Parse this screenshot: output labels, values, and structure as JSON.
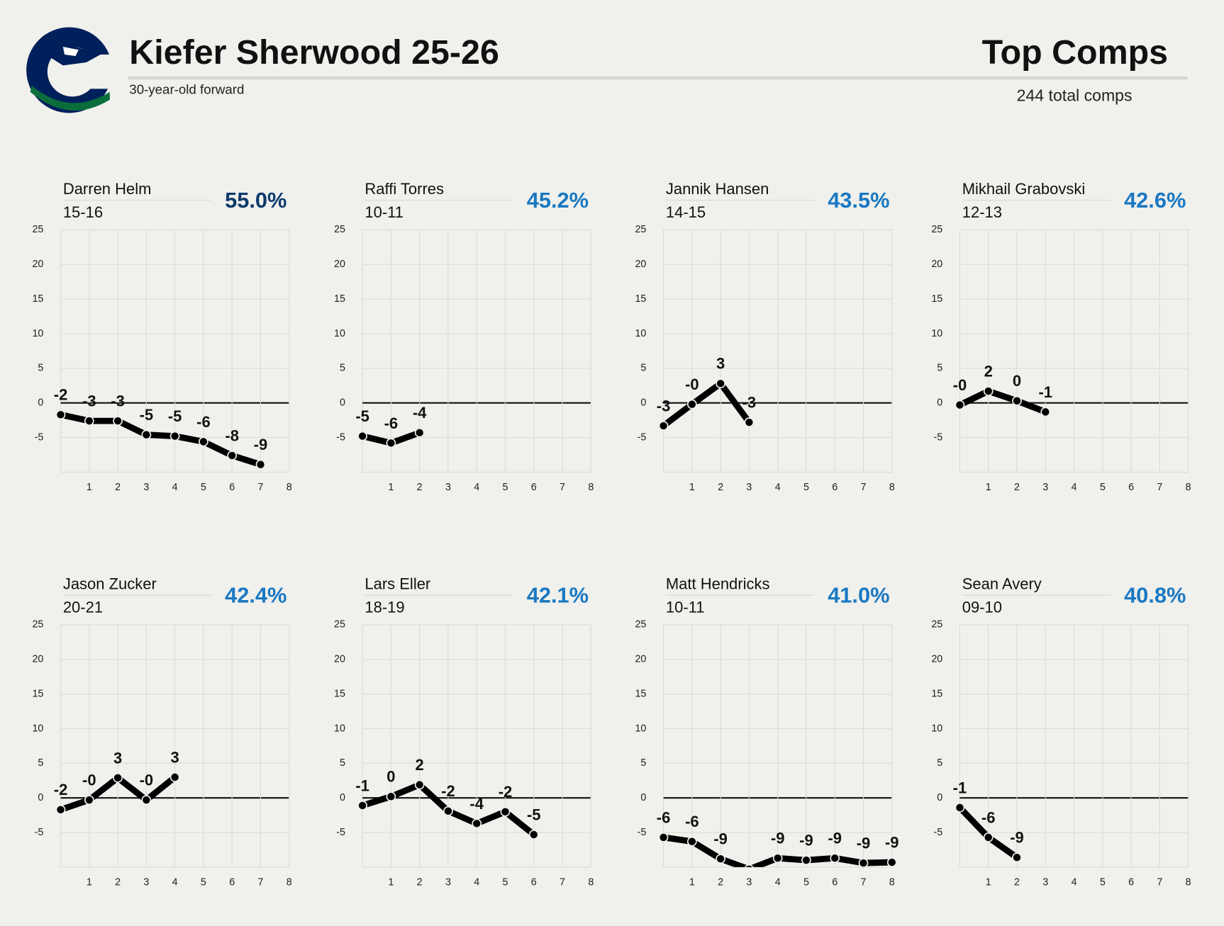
{
  "header": {
    "title": "Kiefer Sherwood 25-26",
    "subtitle": "30-year-old forward",
    "right_title": "Top Comps",
    "right_subtitle": "244 total comps"
  },
  "chart_data": [
    {
      "type": "line",
      "title": "Darren Helm",
      "subtitle": "15-16",
      "annotation": "55.0%",
      "annotation_color": "#0d3a6b",
      "color": "#000000",
      "x": [
        0,
        1,
        2,
        3,
        4,
        5,
        6,
        7
      ],
      "values": [
        -1.7,
        -2.6,
        -2.6,
        -4.6,
        -4.8,
        -5.6,
        -7.6,
        -8.9
      ],
      "value_labels": [
        "-2",
        "-3",
        "-3",
        "-5",
        "-5",
        "-6",
        "-8",
        "-9"
      ],
      "xlim": [
        0,
        8
      ],
      "xticks": [
        1,
        2,
        3,
        4,
        5,
        6,
        7,
        8
      ],
      "ylim": [
        -10,
        25
      ],
      "yticks": [
        -5,
        0,
        5,
        10,
        15,
        20,
        25
      ],
      "grid": true
    },
    {
      "type": "line",
      "title": "Raffi Torres",
      "subtitle": "10-11",
      "annotation": "45.2%",
      "annotation_color": "#1a78c2",
      "color": "#000000",
      "x": [
        0,
        1,
        2
      ],
      "values": [
        -4.8,
        -5.8,
        -4.3
      ],
      "value_labels": [
        "-5",
        "-6",
        "-4"
      ],
      "xlim": [
        0,
        8
      ],
      "xticks": [
        1,
        2,
        3,
        4,
        5,
        6,
        7,
        8
      ],
      "ylim": [
        -10,
        25
      ],
      "yticks": [
        -5,
        0,
        5,
        10,
        15,
        20,
        25
      ],
      "grid": true
    },
    {
      "type": "line",
      "title": "Jannik Hansen",
      "subtitle": "14-15",
      "annotation": "43.5%",
      "annotation_color": "#1a78c2",
      "color": "#000000",
      "x": [
        0,
        1,
        2,
        3
      ],
      "values": [
        -3.3,
        -0.2,
        2.8,
        -2.8
      ],
      "value_labels": [
        "-3",
        "-0",
        "3",
        "-3"
      ],
      "xlim": [
        0,
        8
      ],
      "xticks": [
        1,
        2,
        3,
        4,
        5,
        6,
        7,
        8
      ],
      "ylim": [
        -10,
        25
      ],
      "yticks": [
        -5,
        0,
        5,
        10,
        15,
        20,
        25
      ],
      "grid": true
    },
    {
      "type": "line",
      "title": "Mikhail Grabovski",
      "subtitle": "12-13",
      "annotation": "42.6%",
      "annotation_color": "#1a78c2",
      "color": "#000000",
      "x": [
        0,
        1,
        2,
        3
      ],
      "values": [
        -0.3,
        1.7,
        0.3,
        -1.3
      ],
      "value_labels": [
        "-0",
        "2",
        "0",
        "-1"
      ],
      "xlim": [
        0,
        8
      ],
      "xticks": [
        1,
        2,
        3,
        4,
        5,
        6,
        7,
        8
      ],
      "ylim": [
        -10,
        25
      ],
      "yticks": [
        -5,
        0,
        5,
        10,
        15,
        20,
        25
      ],
      "grid": true
    },
    {
      "type": "line",
      "title": "Jason Zucker",
      "subtitle": "20-21",
      "annotation": "42.4%",
      "annotation_color": "#1a78c2",
      "color": "#000000",
      "x": [
        0,
        1,
        2,
        3,
        4
      ],
      "values": [
        -1.7,
        -0.3,
        2.9,
        -0.3,
        3.0
      ],
      "value_labels": [
        "-2",
        "-0",
        "3",
        "-0",
        "3"
      ],
      "xlim": [
        0,
        8
      ],
      "xticks": [
        1,
        2,
        3,
        4,
        5,
        6,
        7,
        8
      ],
      "ylim": [
        -10,
        25
      ],
      "yticks": [
        -5,
        0,
        5,
        10,
        15,
        20,
        25
      ],
      "grid": true
    },
    {
      "type": "line",
      "title": "Lars Eller",
      "subtitle": "18-19",
      "annotation": "42.1%",
      "annotation_color": "#1a78c2",
      "color": "#000000",
      "x": [
        0,
        1,
        2,
        3,
        4,
        5,
        6
      ],
      "values": [
        -1.1,
        0.2,
        1.9,
        -1.9,
        -3.7,
        -2.0,
        -5.3
      ],
      "value_labels": [
        "-1",
        "0",
        "2",
        "-2",
        "-4",
        "-2",
        "-5"
      ],
      "xlim": [
        0,
        8
      ],
      "xticks": [
        1,
        2,
        3,
        4,
        5,
        6,
        7,
        8
      ],
      "ylim": [
        -10,
        25
      ],
      "yticks": [
        -5,
        0,
        5,
        10,
        15,
        20,
        25
      ],
      "grid": true
    },
    {
      "type": "line",
      "title": "Matt Hendricks",
      "subtitle": "10-11",
      "annotation": "41.0%",
      "annotation_color": "#1a78c2",
      "color": "#000000",
      "x": [
        0,
        1,
        2,
        3,
        4,
        5,
        6,
        7,
        8
      ],
      "values": [
        -5.7,
        -6.3,
        -8.8,
        -10.3,
        -8.7,
        -9.0,
        -8.7,
        -9.4,
        -9.3
      ],
      "value_labels": [
        "-6",
        "-6",
        "-9",
        null,
        "-9",
        "-9",
        "-9",
        "-9",
        "-9"
      ],
      "xlim": [
        0,
        8
      ],
      "xticks": [
        1,
        2,
        3,
        4,
        5,
        6,
        7,
        8
      ],
      "ylim": [
        -10,
        25
      ],
      "yticks": [
        -5,
        0,
        5,
        10,
        15,
        20,
        25
      ],
      "grid": true
    },
    {
      "type": "line",
      "title": "Sean Avery",
      "subtitle": "09-10",
      "annotation": "40.8%",
      "annotation_color": "#1a78c2",
      "color": "#000000",
      "x": [
        0,
        1,
        2
      ],
      "values": [
        -1.4,
        -5.7,
        -8.6
      ],
      "value_labels": [
        "-1",
        "-6",
        "-9"
      ],
      "xlim": [
        0,
        8
      ],
      "xticks": [
        1,
        2,
        3,
        4,
        5,
        6,
        7,
        8
      ],
      "ylim": [
        -10,
        25
      ],
      "yticks": [
        -5,
        0,
        5,
        10,
        15,
        20,
        25
      ],
      "grid": true
    }
  ]
}
